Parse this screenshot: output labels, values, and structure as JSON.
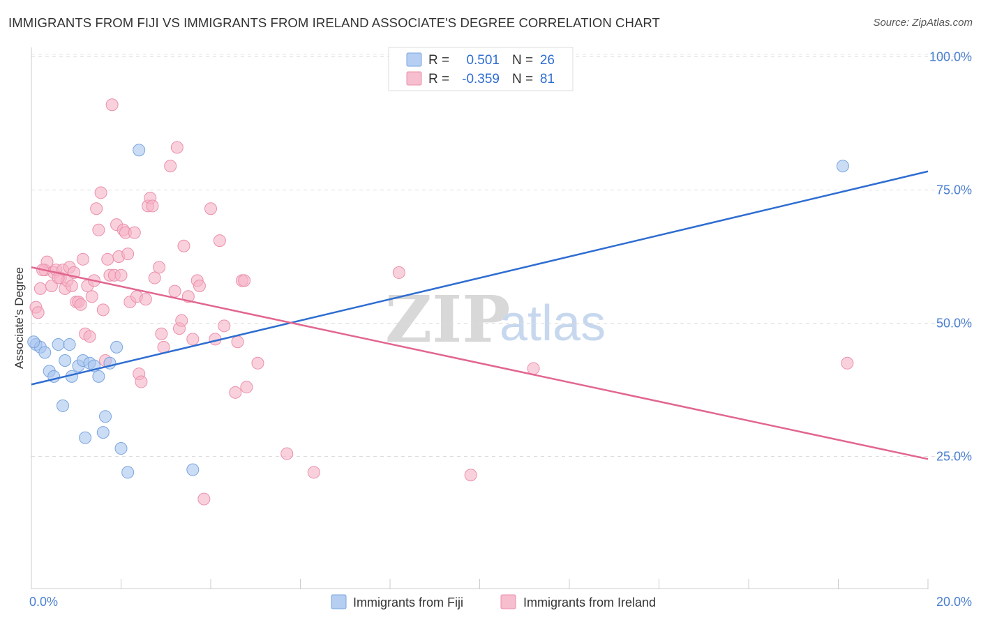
{
  "title": "IMMIGRANTS FROM FIJI VS IMMIGRANTS FROM IRELAND ASSOCIATE'S DEGREE CORRELATION CHART",
  "source": "Source: ZipAtlas.com",
  "watermark": {
    "zip": "ZIP",
    "atlas": "atlas"
  },
  "legend": {
    "rows": [
      {
        "r_label": "R =",
        "r_value": "0.501",
        "n_label": "N =",
        "n_value": "26",
        "color": "#a9c5ee"
      },
      {
        "r_label": "R =",
        "r_value": "-0.359",
        "n_label": "N =",
        "n_value": "81",
        "color": "#f5b3c6"
      }
    ]
  },
  "chart_data": {
    "type": "scatter",
    "title": "IMMIGRANTS FROM FIJI VS IMMIGRANTS FROM IRELAND ASSOCIATE'S DEGREE CORRELATION CHART",
    "xlabel": "",
    "ylabel": "Associate's Degree",
    "xlim": [
      0,
      20
    ],
    "ylim": [
      0,
      105
    ],
    "x_tick_labels": [
      "0.0%",
      "20.0%"
    ],
    "y_ticks": [
      25,
      50,
      75,
      100
    ],
    "y_tick_labels": [
      "25.0%",
      "50.0%",
      "75.0%",
      "100.0%"
    ],
    "grid": true,
    "series": [
      {
        "name": "Immigrants from Fiji",
        "color": "#a9c5ee",
        "stroke": "#7aa6e0",
        "line_color": "#2e6dd1",
        "trend": {
          "x": [
            0,
            20
          ],
          "y": [
            38.5,
            78.5
          ]
        },
        "points": [
          [
            0.1,
            46
          ],
          [
            0.2,
            45.5
          ],
          [
            0.3,
            44.5
          ],
          [
            0.4,
            41
          ],
          [
            0.5,
            40
          ],
          [
            0.6,
            46
          ],
          [
            0.7,
            34.5
          ],
          [
            0.75,
            43
          ],
          [
            0.85,
            46
          ],
          [
            0.9,
            40
          ],
          [
            1.05,
            42
          ],
          [
            1.15,
            43
          ],
          [
            1.2,
            28.5
          ],
          [
            1.3,
            42.5
          ],
          [
            1.4,
            42
          ],
          [
            1.5,
            40
          ],
          [
            1.6,
            29.5
          ],
          [
            1.65,
            32.5
          ],
          [
            1.75,
            42.5
          ],
          [
            1.9,
            45.5
          ],
          [
            2.0,
            26.5
          ],
          [
            2.15,
            22
          ],
          [
            2.4,
            82.5
          ],
          [
            3.6,
            22.5
          ],
          [
            18.1,
            79.5
          ],
          [
            0.05,
            46.5
          ]
        ]
      },
      {
        "name": "Immigrants from Ireland",
        "color": "#f5b3c6",
        "stroke": "#eb90ab",
        "line_color": "#e2668f",
        "trend": {
          "x": [
            0,
            20
          ],
          "y": [
            60.5,
            24.5
          ]
        },
        "points": [
          [
            0.1,
            53
          ],
          [
            0.15,
            52
          ],
          [
            0.2,
            56.5
          ],
          [
            0.3,
            60
          ],
          [
            0.35,
            61.5
          ],
          [
            0.45,
            57
          ],
          [
            0.5,
            59.5
          ],
          [
            0.55,
            60
          ],
          [
            0.65,
            58.5
          ],
          [
            0.7,
            60
          ],
          [
            0.75,
            56.5
          ],
          [
            0.8,
            58
          ],
          [
            0.85,
            60.5
          ],
          [
            0.9,
            57
          ],
          [
            0.95,
            59.5
          ],
          [
            1.0,
            54
          ],
          [
            1.05,
            54
          ],
          [
            1.1,
            53.5
          ],
          [
            1.15,
            62
          ],
          [
            1.2,
            48
          ],
          [
            1.25,
            57
          ],
          [
            1.3,
            47.5
          ],
          [
            1.4,
            58
          ],
          [
            1.45,
            71.5
          ],
          [
            1.5,
            67.5
          ],
          [
            1.55,
            74.5
          ],
          [
            1.6,
            52.5
          ],
          [
            1.65,
            43
          ],
          [
            1.7,
            62
          ],
          [
            1.75,
            59
          ],
          [
            1.8,
            91
          ],
          [
            1.85,
            59
          ],
          [
            1.9,
            68.5
          ],
          [
            1.95,
            62.5
          ],
          [
            2.0,
            59
          ],
          [
            2.05,
            67.5
          ],
          [
            2.1,
            67
          ],
          [
            2.15,
            63
          ],
          [
            2.2,
            54
          ],
          [
            2.3,
            67
          ],
          [
            2.35,
            55
          ],
          [
            2.4,
            40.5
          ],
          [
            2.45,
            39
          ],
          [
            2.55,
            54.5
          ],
          [
            2.6,
            72
          ],
          [
            2.65,
            73.5
          ],
          [
            2.7,
            72
          ],
          [
            2.75,
            58.5
          ],
          [
            2.85,
            60.5
          ],
          [
            2.9,
            48
          ],
          [
            2.95,
            45.5
          ],
          [
            3.1,
            79.5
          ],
          [
            3.2,
            56
          ],
          [
            3.25,
            83
          ],
          [
            3.3,
            49
          ],
          [
            3.35,
            50.5
          ],
          [
            3.4,
            64.5
          ],
          [
            3.5,
            55
          ],
          [
            3.6,
            47
          ],
          [
            3.7,
            58
          ],
          [
            3.75,
            57
          ],
          [
            3.85,
            17
          ],
          [
            4.0,
            71.5
          ],
          [
            4.1,
            47
          ],
          [
            4.2,
            65.5
          ],
          [
            4.3,
            49.5
          ],
          [
            4.55,
            37
          ],
          [
            4.6,
            46.5
          ],
          [
            4.7,
            58
          ],
          [
            4.75,
            58
          ],
          [
            4.8,
            38
          ],
          [
            5.05,
            42.5
          ],
          [
            5.7,
            25.5
          ],
          [
            6.3,
            22
          ],
          [
            8.2,
            59.5
          ],
          [
            9.8,
            21.5
          ],
          [
            11.2,
            41.5
          ],
          [
            18.2,
            42.5
          ],
          [
            0.25,
            60
          ],
          [
            0.6,
            58.5
          ],
          [
            1.35,
            55
          ]
        ]
      }
    ]
  },
  "bottom_legend": [
    {
      "label": "Immigrants from Fiji",
      "color": "#a9c5ee"
    },
    {
      "label": "Immigrants from Ireland",
      "color": "#f5b3c6"
    }
  ]
}
